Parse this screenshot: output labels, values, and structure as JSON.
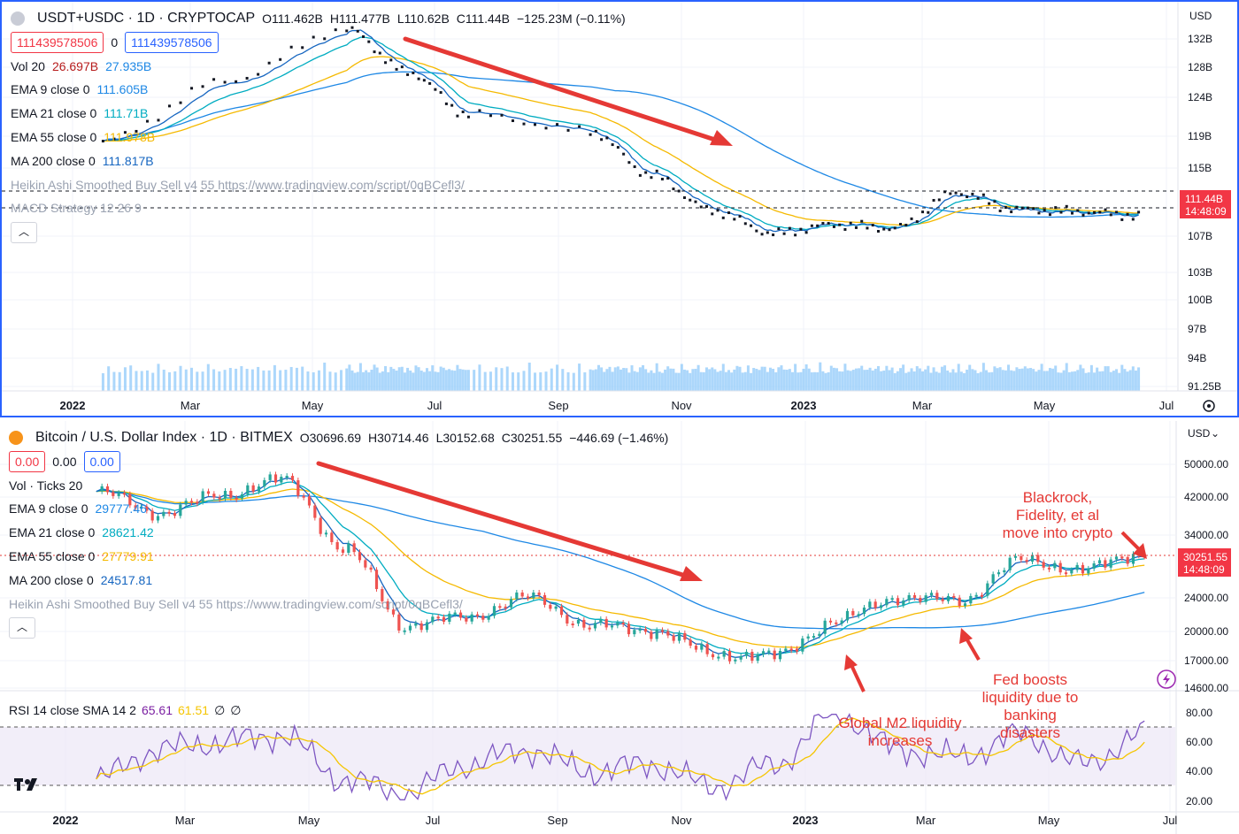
{
  "top": {
    "title": "USDT+USDC · 1D · CRYPTOCAP",
    "ohlc": {
      "o": "O111.462B",
      "h": "H111.477B",
      "l": "L110.62B",
      "c": "C111.44B",
      "chg": "−125.23M (−0.11%)"
    },
    "boxes": {
      "left": "111439578506",
      "mid": "0",
      "right": "111439578506"
    },
    "indicators": [
      {
        "name": "Vol 20",
        "values": [
          {
            "v": "26.697B",
            "cls": "v-red"
          },
          {
            "v": "27.935B",
            "cls": "v-blue"
          }
        ]
      },
      {
        "name": "EMA 9 close 0",
        "values": [
          {
            "v": "111.605B",
            "cls": "v-blue"
          }
        ]
      },
      {
        "name": "EMA 21 close 0",
        "values": [
          {
            "v": "111.71B",
            "cls": "v-cyan"
          }
        ]
      },
      {
        "name": "EMA 55 close 0",
        "values": [
          {
            "v": "111.978B",
            "cls": "v-orange"
          }
        ]
      },
      {
        "name": "MA 200 close 0",
        "values": [
          {
            "v": "111.817B",
            "cls": "v-navy"
          }
        ]
      }
    ],
    "ghost_lines": [
      "Heikin Ashi Smoothed Buy Sell v4 55 https://www.tradingview.com/script/0qBCefl3/",
      "MACD Strategy 12 26 9"
    ],
    "currency": "USD",
    "price_ticks": [
      "132B",
      "128B",
      "124B",
      "119B",
      "115B",
      "107B",
      "103B",
      "100B",
      "97B",
      "94B",
      "91.25B"
    ],
    "last_price": "111.44B",
    "countdown": "14:48:09"
  },
  "bottom": {
    "title": "Bitcoin / U.S. Dollar Index · 1D · BITMEX",
    "ohlc": {
      "o": "O30696.69",
      "h": "H30714.46",
      "l": "L30152.68",
      "c": "C30251.55",
      "chg": "−446.69 (−1.46%)"
    },
    "boxes": {
      "left": "0.00",
      "mid": "0.00",
      "right": "0.00"
    },
    "indicators": [
      {
        "name": "Vol · Ticks 20",
        "values": []
      },
      {
        "name": "EMA 9 close 0",
        "values": [
          {
            "v": "29777.46",
            "cls": "v-blue"
          }
        ]
      },
      {
        "name": "EMA 21 close 0",
        "values": [
          {
            "v": "28621.42",
            "cls": "v-cyan"
          }
        ]
      },
      {
        "name": "EMA 55 close 0",
        "values": [
          {
            "v": "27779.91",
            "cls": "v-orange"
          }
        ]
      },
      {
        "name": "MA 200 close 0",
        "values": [
          {
            "v": "24517.81",
            "cls": "v-navy"
          }
        ]
      }
    ],
    "ghost_line": "Heikin Ashi Smoothed Buy Sell v4 55 https://www.tradingview.com/script/0qBCefl3/",
    "currency": "USD",
    "price_ticks": [
      "50000.00",
      "42000.00",
      "34000.00",
      "24000.00",
      "20000.00",
      "17000.00",
      "14600.00"
    ],
    "last_price": "30251.55",
    "countdown": "14:48:09",
    "rsi": {
      "label": "RSI 14 close SMA 14 2",
      "v1": "65.61",
      "v2": "61.51",
      "v3": "∅",
      "v4": "∅",
      "ticks": [
        "80.00",
        "60.00",
        "40.00",
        "20.00"
      ]
    },
    "annotations": {
      "a1": [
        "Blackrock,",
        "Fidelity, et al",
        "move into crypto"
      ],
      "a2": [
        "Fed boosts",
        "liquidity due to",
        "banking",
        "disasters"
      ],
      "a3": [
        "Global M2 liquidity",
        "increases"
      ]
    }
  },
  "time_axis": [
    "2022",
    "Mar",
    "May",
    "Jul",
    "Sep",
    "Nov",
    "2023",
    "Mar",
    "May",
    "Jul"
  ],
  "chart_data": [
    {
      "type": "line",
      "title": "USDT+USDC · 1D · CRYPTOCAP",
      "x": [
        "2022-01",
        "2022-03",
        "2022-05",
        "2022-06",
        "2022-07",
        "2022-09",
        "2022-10",
        "2022-11",
        "2022-12",
        "2023-01",
        "2023-02",
        "2023-03",
        "2023-04",
        "2023-05",
        "2023-06"
      ],
      "series": [
        {
          "values": [
            120,
            127,
            133,
            128,
            123,
            121,
            116,
            112,
            109.5,
            110.5,
            110,
            114,
            112,
            111.8,
            111.44
          ]
        }
      ],
      "ylim": [
        91.25,
        134
      ]
    },
    {
      "type": "line",
      "title": "Bitcoin / U.S. Dollar Index · 1D · BITMEX",
      "x": [
        "2022-01",
        "2022-02",
        "2022-03",
        "2022-04",
        "2022-05",
        "2022-06",
        "2022-07",
        "2022-08",
        "2022-09",
        "2022-10",
        "2022-11",
        "2022-12",
        "2023-01",
        "2023-02",
        "2023-03",
        "2023-04",
        "2023-05",
        "2023-06"
      ],
      "series": [
        {
          "values": [
            43000,
            38000,
            42000,
            46000,
            31000,
            20000,
            21000,
            23500,
            20000,
            19500,
            17000,
            16800,
            20500,
            23500,
            23000,
            29000,
            27500,
            30251.55
          ]
        }
      ],
      "ylim": [
        14000,
        52000
      ]
    },
    {
      "type": "line",
      "title": "RSI 14 close SMA 14 2",
      "x": [
        "2022-01",
        "2022-02",
        "2022-03",
        "2022-04",
        "2022-05",
        "2022-06",
        "2022-07",
        "2022-08",
        "2022-09",
        "2022-10",
        "2022-11",
        "2022-12",
        "2023-01",
        "2023-02",
        "2023-03",
        "2023-04",
        "2023-05",
        "2023-06"
      ],
      "series": [
        {
          "values": [
            35,
            55,
            60,
            65,
            35,
            25,
            45,
            55,
            40,
            45,
            30,
            45,
            80,
            55,
            50,
            65,
            45,
            65.61
          ]
        }
      ],
      "ylim": [
        20,
        80
      ]
    }
  ]
}
